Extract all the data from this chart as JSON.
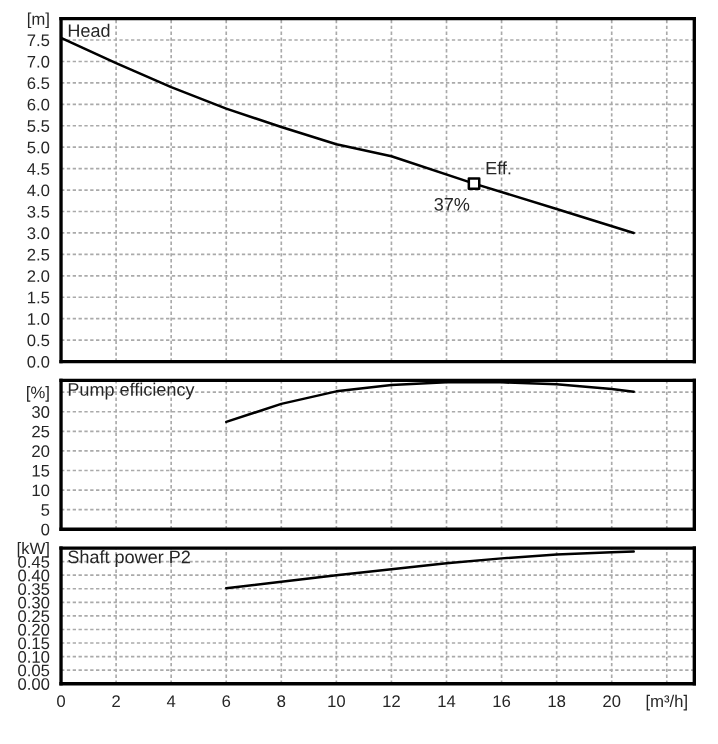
{
  "chart_data": [
    {
      "type": "line",
      "title": "Head",
      "xlim": [
        0,
        23
      ],
      "ylim": [
        0,
        8
      ],
      "yticks": [
        {
          "value": 0,
          "label": "0.0"
        },
        0.5,
        {
          "value": 1,
          "label": "1.0"
        },
        1.5,
        {
          "value": 2,
          "label": "2.0"
        },
        2.5,
        {
          "value": 3,
          "label": "3.0"
        },
        3.5,
        {
          "value": 4,
          "label": "4.0"
        },
        4.5,
        {
          "value": 5,
          "label": "5.0"
        },
        5.5,
        {
          "value": 6,
          "label": "6.0"
        },
        6.5,
        {
          "value": 7,
          "label": "7.0"
        },
        7.5,
        {
          "value": 8,
          "label": "[m]"
        }
      ],
      "grid": true,
      "tick_labels": "y",
      "series": [
        {
          "color": "#000000",
          "x": [
            0,
            2,
            4,
            6,
            8,
            10,
            12,
            15,
            18,
            20.8
          ],
          "values": [
            7.55,
            6.96,
            6.4,
            5.9,
            5.47,
            5.07,
            4.79,
            4.15,
            3.56,
            3.0
          ]
        },
        {
          "type": "scatter",
          "marker": "square",
          "color": "#000000",
          "x": [
            15
          ],
          "values": [
            4.15
          ]
        }
      ],
      "annotations": [
        {
          "text": "Eff.",
          "x": 15,
          "y": 4.15
        },
        {
          "text": "37%",
          "x": 15,
          "y": 4.15
        }
      ]
    },
    {
      "type": "line",
      "title": "Pump efficiency",
      "xlim": [
        0,
        23
      ],
      "ylim": [
        0,
        38
      ],
      "yticks": [
        0,
        5,
        10,
        15,
        20,
        25,
        30,
        {
          "value": 35,
          "label": "[%]"
        }
      ],
      "grid": true,
      "tick_labels": "y",
      "series": [
        {
          "color": "#000000",
          "x": [
            6,
            8,
            10,
            12,
            14,
            16,
            18,
            20,
            20.8
          ],
          "values": [
            27.4,
            32.0,
            35.2,
            36.8,
            37.5,
            37.5,
            37.0,
            35.8,
            35.1
          ]
        }
      ]
    },
    {
      "type": "line",
      "title": "Shaft power P2",
      "xlim": [
        0,
        23
      ],
      "ylim": [
        0,
        0.5
      ],
      "xticks": [
        0,
        2,
        4,
        6,
        8,
        10,
        12,
        14,
        16,
        18,
        20,
        {
          "value": 22,
          "label": "[m³/h]"
        }
      ],
      "yticks": [
        {
          "value": 0,
          "label": "0.00"
        },
        0.05,
        {
          "value": 0.1,
          "label": "0.10"
        },
        0.15,
        {
          "value": 0.2,
          "label": "0.20"
        },
        0.25,
        {
          "value": 0.3,
          "label": "0.30"
        },
        0.35,
        {
          "value": 0.4,
          "label": "0.40"
        },
        0.45,
        {
          "value": 0.5,
          "label": "[kW]"
        }
      ],
      "grid": true,
      "series": [
        {
          "color": "#000000",
          "x": [
            6,
            8,
            10,
            12,
            14,
            16,
            18,
            20,
            20.8
          ],
          "values": [
            0.352,
            0.376,
            0.4,
            0.422,
            0.444,
            0.462,
            0.476,
            0.485,
            0.487
          ]
        }
      ]
    }
  ]
}
